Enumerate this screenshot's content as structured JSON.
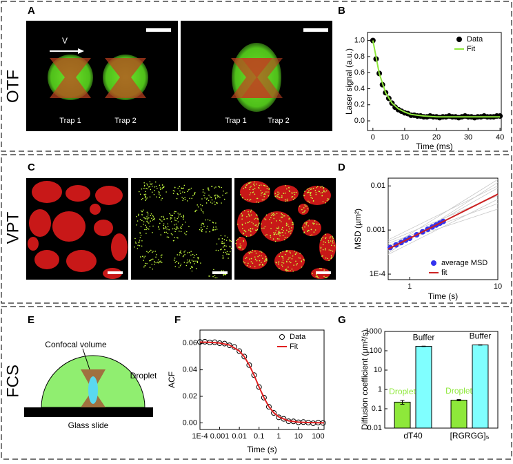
{
  "figure": {
    "rows": [
      "OTF",
      "VPT",
      "FCS"
    ],
    "panel_letters": [
      "A",
      "B",
      "C",
      "D",
      "E",
      "F",
      "G"
    ],
    "panel_a": {
      "velocity": "V",
      "traps": [
        "Trap 1",
        "Trap 2",
        "Trap 1",
        "Trap 2"
      ]
    },
    "panel_e": {
      "confocal": "Confocal volume",
      "droplet": "Droplet",
      "slide": "Glass slide"
    }
  },
  "chart_data": [
    {
      "type": "scatter",
      "xlabel": "Time (ms)",
      "ylabel": "Laser signal (a.u.)",
      "xlim": [
        -1.7,
        40.4
      ],
      "ylim": [
        -0.12,
        1.1
      ],
      "xticks": [
        0,
        10,
        20,
        30,
        40
      ],
      "yticks": [
        {
          "value": 0,
          "label": "0.0"
        },
        0.2,
        0.4,
        0.6,
        0.8,
        {
          "value": 1,
          "label": "1.0"
        }
      ],
      "legend": "top-right",
      "series": [
        {
          "name": "Data",
          "color": "#000000",
          "style": "markers",
          "x": [
            0,
            1,
            2,
            3,
            4,
            5,
            6,
            7,
            8,
            9,
            10,
            11,
            12,
            13,
            14,
            15,
            16,
            17,
            18,
            19,
            20,
            21,
            22,
            23,
            24,
            25,
            26,
            27,
            28,
            29,
            30,
            31,
            32,
            33,
            34,
            35,
            36,
            37,
            38,
            39,
            40
          ],
          "values": [
            1.0,
            0.77,
            0.59,
            0.45,
            0.35,
            0.28,
            0.22,
            0.17,
            0.14,
            0.12,
            0.1,
            0.09,
            0.07,
            0.07,
            0.06,
            0.06,
            0.05,
            0.05,
            0.06,
            0.05,
            0.05,
            0.04,
            0.05,
            0.05,
            0.06,
            0.05,
            0.05,
            0.04,
            0.05,
            0.06,
            0.05,
            0.05,
            0.04,
            0.05,
            0.05,
            0.06,
            0.05,
            0.05,
            0.05,
            0.06,
            0.06
          ]
        },
        {
          "name": "Fit",
          "color": "#8ee83a",
          "style": "line",
          "x": [
            0,
            2,
            4,
            6,
            8,
            10,
            12,
            14,
            16,
            18,
            20,
            24,
            28,
            32,
            36,
            40
          ],
          "values": [
            1.0,
            0.59,
            0.35,
            0.22,
            0.15,
            0.11,
            0.08,
            0.07,
            0.06,
            0.055,
            0.05,
            0.05,
            0.05,
            0.05,
            0.05,
            0.05
          ]
        }
      ]
    },
    {
      "type": "scatter",
      "xlabel": "Time (s)",
      "ylabel": "MSD (µm²)",
      "xlog": true,
      "ylog": true,
      "xlim": [
        0.57,
        10
      ],
      "ylim": [
        7.5e-05,
        0.015
      ],
      "xticks": [
        1,
        10
      ],
      "yticks": [
        {
          "value": 0.0001,
          "label": "1E-4"
        },
        0.001,
        0.01
      ],
      "legend": "bottom-right",
      "series": [
        {
          "color": "#c8c8c8",
          "style": "line",
          "x": [
            0.57,
            10
          ],
          "values": [
            0.0003,
            0.012
          ]
        },
        {
          "color": "#c8c8c8",
          "style": "line",
          "x": [
            0.57,
            10
          ],
          "values": [
            0.0005,
            0.004
          ]
        },
        {
          "color": "#c8c8c8",
          "style": "line",
          "x": [
            0.57,
            10
          ],
          "values": [
            0.00035,
            0.009
          ]
        },
        {
          "color": "#c8c8c8",
          "style": "line",
          "x": [
            0.57,
            10
          ],
          "values": [
            0.00045,
            0.003
          ]
        },
        {
          "color": "#c8c8c8",
          "style": "line",
          "x": [
            0.57,
            10
          ],
          "values": [
            0.0004,
            0.014
          ]
        },
        {
          "color": "#c8c8c8",
          "style": "line",
          "x": [
            0.57,
            10
          ],
          "values": [
            0.00055,
            0.006
          ]
        },
        {
          "color": "#c8c8c8",
          "style": "line",
          "x": [
            0.57,
            10
          ],
          "values": [
            0.00028,
            0.005
          ]
        },
        {
          "color": "#c8c8c8",
          "style": "line",
          "x": [
            0.57,
            10
          ],
          "values": [
            0.0006,
            0.01
          ]
        },
        {
          "name": "average MSD",
          "color": "#3333ee",
          "style": "markers",
          "x": [
            0.6,
            0.7,
            0.8,
            0.9,
            1.0,
            1.2,
            1.4,
            1.6,
            1.8,
            2.0,
            2.2,
            2.4
          ],
          "values": [
            0.0004,
            0.00046,
            0.00052,
            0.00059,
            0.00065,
            0.00078,
            0.00091,
            0.00104,
            0.00117,
            0.0013,
            0.00143,
            0.00156
          ]
        },
        {
          "name": "fit",
          "color": "#cc2222",
          "style": "line",
          "x": [
            0.57,
            10
          ],
          "values": [
            0.00037,
            0.0065
          ]
        }
      ]
    },
    {
      "type": "scatter",
      "xlabel": "Time (s)",
      "ylabel": "ACF",
      "xlog": true,
      "xlim": [
        0.0001,
        200
      ],
      "ylim": [
        -0.005,
        0.07
      ],
      "xticks": [
        {
          "value": 0.0001,
          "label": "1E-4"
        },
        0.001,
        0.01,
        0.1,
        1,
        10,
        100
      ],
      "yticks": [
        {
          "value": 0,
          "label": "0.00"
        },
        0.02,
        0.04,
        0.06
      ],
      "legend": "top-right",
      "series": [
        {
          "name": "Data",
          "color": "#000000",
          "style": "open-markers",
          "x": [
            0.0001,
            0.000178,
            0.000316,
            0.00056,
            0.001,
            0.00178,
            0.00316,
            0.0056,
            0.01,
            0.0178,
            0.0316,
            0.056,
            0.1,
            0.178,
            0.316,
            0.56,
            1,
            1.78,
            3.16,
            5.6,
            10,
            17.8,
            31.6,
            56,
            100,
            178
          ],
          "values": [
            0.061,
            0.0612,
            0.0606,
            0.0608,
            0.0601,
            0.0598,
            0.0585,
            0.0572,
            0.0541,
            0.05,
            0.0436,
            0.036,
            0.027,
            0.019,
            0.0121,
            0.0075,
            0.0042,
            0.003,
            0.0012,
            0.0011,
            0.0004,
            0.0006,
            0.0002,
            -0.0003,
            0.0002,
            -0.0001
          ]
        },
        {
          "name": "Fit",
          "color": "#e02020",
          "style": "line",
          "x": [
            0.0001,
            0.000316,
            0.001,
            0.00316,
            0.01,
            0.0178,
            0.0316,
            0.056,
            0.1,
            0.178,
            0.316,
            0.56,
            1,
            3.16,
            10,
            31.6,
            100,
            200
          ],
          "values": [
            0.0609,
            0.0608,
            0.0602,
            0.0587,
            0.0542,
            0.0499,
            0.0437,
            0.0359,
            0.0271,
            0.0189,
            0.0122,
            0.0076,
            0.0045,
            0.0015,
            0.0005,
            0.0002,
            0.0001,
            0.0
          ]
        }
      ]
    },
    {
      "type": "bar",
      "ylabel": "Diffusion coefficient (µm²/s)",
      "ylog": true,
      "ylim": [
        0.01,
        1000
      ],
      "yticks": [
        0.01,
        0.1,
        1,
        10,
        100,
        1000
      ],
      "categories": [
        "dT40",
        "[RGRGG]₅"
      ],
      "series": [
        {
          "name": "Droplet",
          "color": "#8ee83a",
          "label_color": "#8ee83a",
          "values": [
            0.22,
            0.28
          ],
          "errors": [
            0.05,
            0.02
          ]
        },
        {
          "name": "Buffer",
          "color": "#80ffff",
          "label_color": "#000000",
          "values": [
            170,
            200
          ],
          "errors": [
            5,
            5
          ]
        }
      ]
    }
  ]
}
